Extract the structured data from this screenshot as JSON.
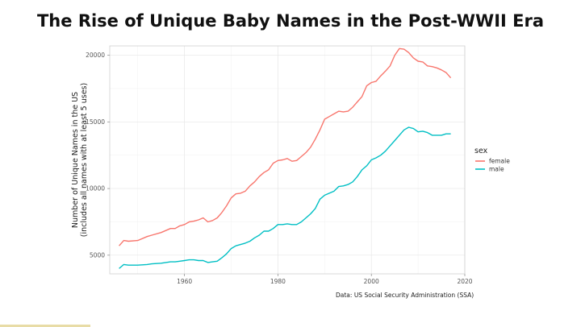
{
  "slide": {
    "title": "The Rise of Unique Baby Names in the Post-WWII Era",
    "caption": "Data: US  Social Security Administration (SSA)",
    "accent_color": "#e8dca6"
  },
  "chart_data": {
    "type": "line",
    "title": "",
    "xlabel": "",
    "ylabel": "Number of Unique Names in the US",
    "ylabel_line2": "(includes all names with at least 5 uses)",
    "xlim": [
      1944,
      2020
    ],
    "ylim": [
      3600,
      20700
    ],
    "x_ticks": [
      1960,
      1980,
      2000,
      2020
    ],
    "y_ticks": [
      5000,
      10000,
      15000,
      20000
    ],
    "grid": true,
    "legend": {
      "title": "sex",
      "position": "right"
    },
    "series": [
      {
        "name": "female",
        "color": "#f8766d",
        "x": [
          1946,
          1947,
          1948,
          1950,
          1952,
          1953,
          1955,
          1957,
          1958,
          1959,
          1960,
          1961,
          1962,
          1963,
          1964,
          1965,
          1966,
          1967,
          1968,
          1969,
          1970,
          1971,
          1972,
          1973,
          1974,
          1975,
          1976,
          1977,
          1978,
          1979,
          1980,
          1981,
          1982,
          1983,
          1984,
          1985,
          1986,
          1987,
          1988,
          1989,
          1990,
          1991,
          1992,
          1993,
          1994,
          1995,
          1996,
          1997,
          1998,
          1999,
          2000,
          2001,
          2002,
          2003,
          2004,
          2005,
          2006,
          2007,
          2008,
          2009,
          2010,
          2011,
          2012,
          2013,
          2014,
          2015,
          2016,
          2017
        ],
        "y": [
          5700,
          6100,
          6050,
          6100,
          6400,
          6500,
          6700,
          7000,
          7000,
          7200,
          7300,
          7500,
          7550,
          7650,
          7800,
          7500,
          7600,
          7800,
          8200,
          8700,
          9300,
          9600,
          9650,
          9800,
          10200,
          10500,
          10900,
          11200,
          11400,
          11900,
          12100,
          12150,
          12250,
          12050,
          12100,
          12400,
          12700,
          13100,
          13700,
          14400,
          15200,
          15400,
          15600,
          15800,
          15750,
          15800,
          16100,
          16500,
          16900,
          17700,
          17950,
          18050,
          18450,
          18800,
          19200,
          20000,
          20500,
          20450,
          20200,
          19800,
          19550,
          19500,
          19200,
          19150,
          19050,
          18900,
          18700,
          18300
        ]
      },
      {
        "name": "male",
        "color": "#00bfc4",
        "x": [
          1946,
          1947,
          1948,
          1950,
          1952,
          1953,
          1955,
          1957,
          1958,
          1959,
          1960,
          1961,
          1962,
          1963,
          1964,
          1965,
          1966,
          1967,
          1968,
          1969,
          1970,
          1971,
          1972,
          1973,
          1974,
          1975,
          1976,
          1977,
          1978,
          1979,
          1980,
          1981,
          1982,
          1983,
          1984,
          1985,
          1986,
          1987,
          1988,
          1989,
          1990,
          1991,
          1992,
          1993,
          1994,
          1995,
          1996,
          1997,
          1998,
          1999,
          2000,
          2001,
          2002,
          2003,
          2004,
          2005,
          2006,
          2007,
          2008,
          2009,
          2010,
          2011,
          2012,
          2013,
          2014,
          2015,
          2016,
          2017
        ],
        "y": [
          4000,
          4300,
          4250,
          4250,
          4300,
          4350,
          4400,
          4500,
          4500,
          4550,
          4600,
          4650,
          4650,
          4600,
          4600,
          4450,
          4500,
          4550,
          4800,
          5100,
          5500,
          5700,
          5800,
          5900,
          6050,
          6300,
          6500,
          6800,
          6800,
          7000,
          7300,
          7300,
          7350,
          7300,
          7300,
          7500,
          7800,
          8100,
          8500,
          9200,
          9500,
          9650,
          9800,
          10150,
          10200,
          10300,
          10500,
          10900,
          11400,
          11700,
          12150,
          12300,
          12500,
          12800,
          13200,
          13600,
          14000,
          14400,
          14600,
          14500,
          14250,
          14300,
          14200,
          14000,
          14000,
          14000,
          14100,
          14100
        ]
      }
    ]
  }
}
